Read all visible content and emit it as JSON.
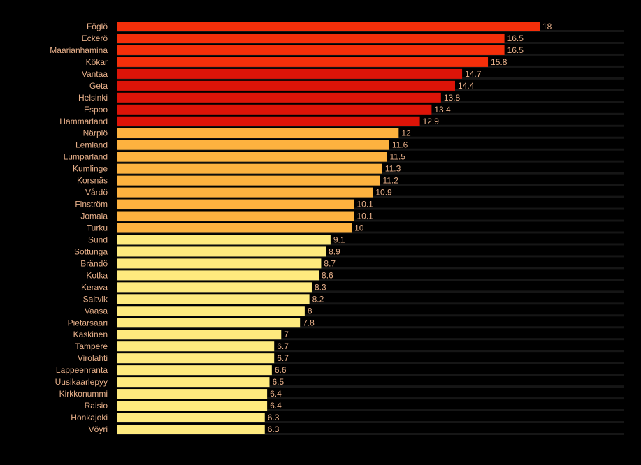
{
  "chart_data": {
    "type": "bar",
    "orientation": "horizontal",
    "title": "",
    "xlabel": "",
    "ylabel": "",
    "xlim": [
      0,
      21.6
    ],
    "grid": false,
    "legend": "none",
    "categories": [
      "Föglö",
      "Eckerö",
      "Maarianhamina",
      "Kökar",
      "Vantaa",
      "Geta",
      "Helsinki",
      "Espoo",
      "Hammarland",
      "Närpiö",
      "Lemland",
      "Lumparland",
      "Kumlinge",
      "Korsnäs",
      "Vårdö",
      "Finström",
      "Jomala",
      "Turku",
      "Sund",
      "Sottunga",
      "Brändö",
      "Kotka",
      "Kerava",
      "Saltvik",
      "Vaasa",
      "Pietarsaari",
      "Kaskinen",
      "Tampere",
      "Virolahti",
      "Lappeenranta",
      "Uusikaarlepyy",
      "Kirkkonummi",
      "Raisio",
      "Honkajoki",
      "Vöyri"
    ],
    "values": [
      18,
      16.5,
      16.5,
      15.8,
      14.7,
      14.4,
      13.8,
      13.4,
      12.9,
      12,
      11.6,
      11.5,
      11.3,
      11.2,
      10.9,
      10.1,
      10.1,
      10,
      9.1,
      8.9,
      8.7,
      8.6,
      8.3,
      8.2,
      8,
      7.8,
      7,
      6.7,
      6.7,
      6.6,
      6.5,
      6.4,
      6.4,
      6.3,
      6.3
    ],
    "value_labels": [
      "18",
      "16.5",
      "16.5",
      "15.8",
      "14.7",
      "14.4",
      "13.8",
      "13.4",
      "12.9",
      "12",
      "11.6",
      "11.5",
      "11.3",
      "11.2",
      "10.9",
      "10.1",
      "10.1",
      "10",
      "9.1",
      "8.9",
      "8.7",
      "8.6",
      "8.3",
      "8.2",
      "8",
      "7.8",
      "7",
      "6.7",
      "6.7",
      "6.6",
      "6.5",
      "6.4",
      "6.4",
      "6.3",
      "6.3"
    ],
    "color_bands": [
      {
        "min": 12.5,
        "color": "#dd1408",
        "color_high": "#f52f0a"
      },
      {
        "min": 9.5,
        "color": "#fdb23f"
      },
      {
        "min": 0,
        "color": "#feea7e"
      }
    ],
    "track_color": "#161616",
    "label_color": "#e8b08a",
    "background": "#000000"
  }
}
